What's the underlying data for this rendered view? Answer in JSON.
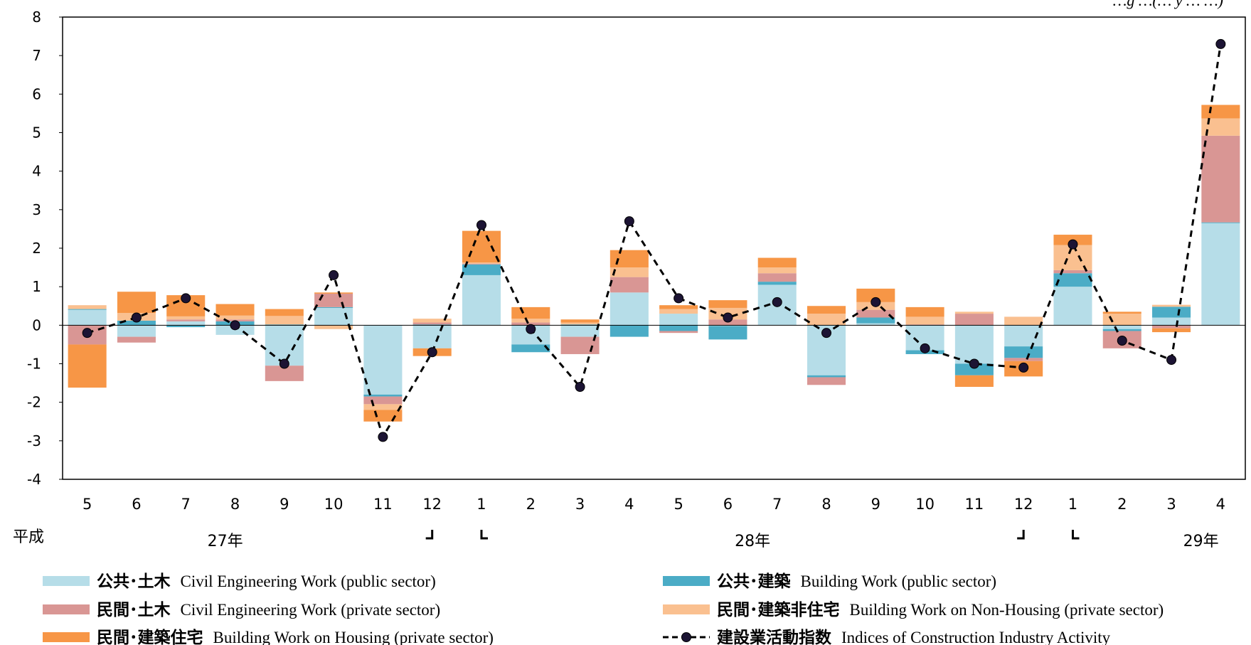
{
  "chart_data": {
    "type": "bar",
    "stacked": true,
    "subtitle": "…g …(… y … …)",
    "categories": [
      "5",
      "6",
      "7",
      "8",
      "9",
      "10",
      "11",
      "12",
      "1",
      "2",
      "3",
      "4",
      "5",
      "6",
      "7",
      "8",
      "9",
      "10",
      "11",
      "12",
      "1",
      "2",
      "3",
      "4"
    ],
    "era_label": "平成",
    "year_labels": [
      {
        "text": "27年",
        "at_index": 2.8
      },
      {
        "text": "28年",
        "at_index": 13.5
      },
      {
        "text": "29年",
        "at_index": 22.6
      }
    ],
    "year_boundaries": [
      {
        "end_of_year_index": 7,
        "start_of_year_index": 8
      },
      {
        "end_of_year_index": 19,
        "start_of_year_index": 20
      }
    ],
    "ylim": [
      -4,
      8
    ],
    "yticks": [
      -4,
      -3,
      -2,
      -1,
      0,
      1,
      2,
      3,
      4,
      5,
      6,
      7,
      8
    ],
    "grid": false,
    "legend_position": "bottom",
    "series": [
      {
        "name": "公共･土木",
        "name_en": "Civil Engineering Work (public sector)",
        "color": "#b6dde8",
        "values": [
          0.4,
          -0.3,
          0.1,
          -0.25,
          -1.05,
          0.45,
          -1.8,
          -0.6,
          1.3,
          -0.5,
          -0.3,
          0.85,
          0.3,
          -0.02,
          1.05,
          -1.3,
          0.05,
          -0.65,
          -1.0,
          -0.55,
          1.0,
          -0.1,
          0.2,
          2.65
        ]
      },
      {
        "name": "公共･建築",
        "name_en": "Building Work (public sector)",
        "color": "#4bacc6",
        "values": [
          0.02,
          0.12,
          -0.05,
          0.1,
          0.02,
          0.02,
          -0.05,
          0.02,
          0.28,
          -0.2,
          0.02,
          -0.3,
          -0.15,
          -0.35,
          0.08,
          -0.05,
          0.15,
          -0.1,
          -0.3,
          -0.3,
          0.35,
          -0.05,
          0.28,
          0.02
        ]
      },
      {
        "name": "民間･土木",
        "name_en": "Civil Engineering Work (private sector)",
        "color": "#d99694",
        "values": [
          -0.5,
          -0.15,
          0.05,
          0.05,
          -0.4,
          0.35,
          -0.2,
          0.05,
          0.02,
          0.07,
          -0.45,
          0.4,
          -0.05,
          0.15,
          0.22,
          -0.2,
          0.2,
          0.02,
          0.3,
          -0.08,
          0.08,
          -0.45,
          -0.08,
          2.25
        ]
      },
      {
        "name": "民間･建築非住宅",
        "name_en": "Building Work on Non-Housing (private sector)",
        "color": "#fac090",
        "values": [
          0.1,
          0.2,
          0.08,
          0.1,
          0.22,
          -0.1,
          -0.15,
          0.1,
          0.03,
          0.1,
          0.05,
          0.25,
          0.12,
          0.3,
          0.15,
          0.3,
          0.2,
          0.2,
          0.05,
          0.22,
          0.65,
          0.3,
          0.05,
          0.45
        ]
      },
      {
        "name": "民間･建築住宅",
        "name_en": "Building Work on Housing (private sector)",
        "color": "#f79646",
        "values": [
          -1.12,
          0.55,
          0.55,
          0.3,
          0.18,
          0.03,
          -0.3,
          -0.2,
          0.82,
          0.3,
          0.08,
          0.45,
          0.1,
          0.2,
          0.25,
          0.2,
          0.35,
          0.25,
          -0.3,
          -0.4,
          0.27,
          0.05,
          -0.1,
          0.35
        ]
      }
    ],
    "line": {
      "name": "建設業活動指数",
      "name_en": "Indices of Construction Industry Activity",
      "color": "#000000",
      "marker_color": "#1c1434",
      "style": "dashed",
      "values": [
        -0.2,
        0.2,
        0.7,
        0.0,
        -1.0,
        1.3,
        -2.9,
        -0.7,
        2.6,
        -0.1,
        -1.6,
        2.7,
        0.7,
        0.2,
        0.6,
        -0.2,
        0.6,
        -0.6,
        -1.0,
        -1.1,
        2.1,
        -0.4,
        -0.9,
        7.3
      ]
    }
  }
}
